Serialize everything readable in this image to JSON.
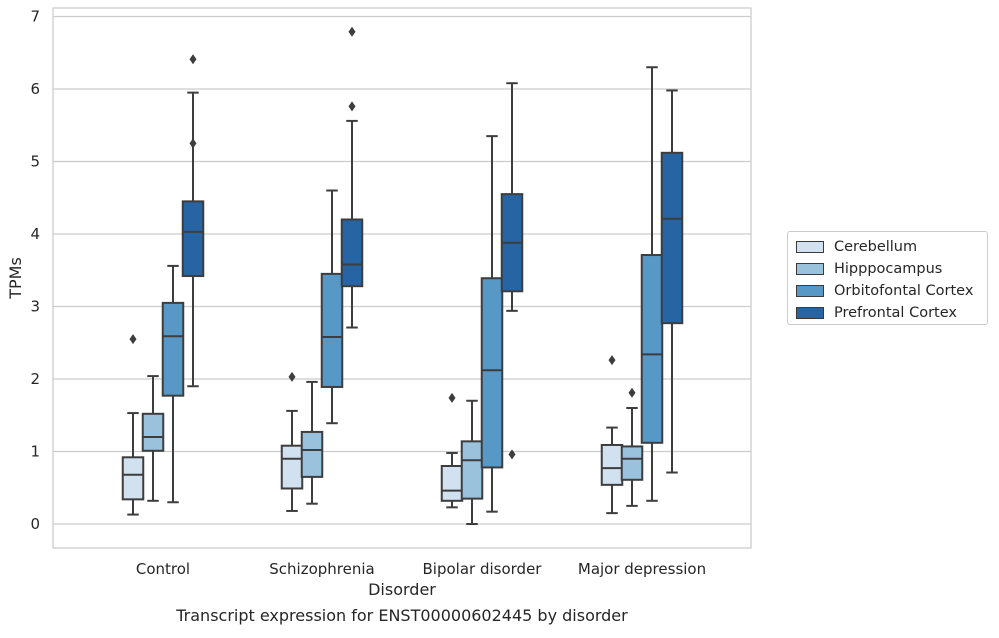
{
  "chart_data": {
    "type": "boxplot",
    "categories": [
      "Control",
      "Schizophrenia",
      "Bipolar disorder",
      "Major depression"
    ],
    "xlabel": "Disorder",
    "ylabel": "TPMs",
    "ylim": [
      -0.32,
      7.13
    ],
    "yticks": [
      0,
      1,
      2,
      3,
      4,
      5,
      6,
      7
    ],
    "grid": "horizontal",
    "legend_position": "right",
    "series": [
      {
        "name": "Cerebellum",
        "color": "#d1e1f0",
        "boxes": [
          {
            "whislo": 0.13,
            "q1": 0.34,
            "med": 0.68,
            "q3": 0.92,
            "whishi": 1.53,
            "fliers": [
              2.55
            ]
          },
          {
            "whislo": 0.18,
            "q1": 0.49,
            "med": 0.9,
            "q3": 1.08,
            "whishi": 1.56,
            "fliers": [
              2.03
            ]
          },
          {
            "whislo": 0.23,
            "q1": 0.32,
            "med": 0.46,
            "q3": 0.8,
            "whishi": 0.98,
            "fliers": [
              1.74
            ]
          },
          {
            "whislo": 0.15,
            "q1": 0.54,
            "med": 0.77,
            "q3": 1.09,
            "whishi": 1.33,
            "fliers": [
              2.26
            ]
          }
        ]
      },
      {
        "name": "Hipppocampus",
        "color": "#9bc2dc",
        "boxes": [
          {
            "whislo": 0.32,
            "q1": 1.01,
            "med": 1.2,
            "q3": 1.52,
            "whishi": 2.04,
            "fliers": []
          },
          {
            "whislo": 0.28,
            "q1": 0.65,
            "med": 1.02,
            "q3": 1.27,
            "whishi": 1.96,
            "fliers": []
          },
          {
            "whislo": 0.0,
            "q1": 0.35,
            "med": 0.88,
            "q3": 1.14,
            "whishi": 1.7,
            "fliers": []
          },
          {
            "whislo": 0.25,
            "q1": 0.61,
            "med": 0.9,
            "q3": 1.07,
            "whishi": 1.6,
            "fliers": [
              1.81
            ]
          }
        ]
      },
      {
        "name": "Orbitofontal Cortex",
        "color": "#5898c6",
        "boxes": [
          {
            "whislo": 0.3,
            "q1": 1.77,
            "med": 2.59,
            "q3": 3.05,
            "whishi": 3.56,
            "fliers": []
          },
          {
            "whislo": 1.39,
            "q1": 1.89,
            "med": 2.58,
            "q3": 3.45,
            "whishi": 4.6,
            "fliers": []
          },
          {
            "whislo": 0.17,
            "q1": 0.78,
            "med": 2.12,
            "q3": 3.39,
            "whishi": 5.35,
            "fliers": []
          },
          {
            "whislo": 0.32,
            "q1": 1.12,
            "med": 2.34,
            "q3": 3.71,
            "whishi": 6.3,
            "fliers": []
          }
        ]
      },
      {
        "name": "Prefrontal Cortex",
        "color": "#2664a4",
        "boxes": [
          {
            "whislo": 1.9,
            "q1": 3.42,
            "med": 4.03,
            "q3": 4.45,
            "whishi": 5.95,
            "fliers": [
              5.25,
              6.41
            ]
          },
          {
            "whislo": 2.71,
            "q1": 3.28,
            "med": 3.58,
            "q3": 4.2,
            "whishi": 5.56,
            "fliers": [
              5.76,
              6.79
            ]
          },
          {
            "whislo": 2.94,
            "q1": 3.21,
            "med": 3.88,
            "q3": 4.55,
            "whishi": 6.08,
            "fliers": [
              0.96
            ]
          },
          {
            "whislo": 0.71,
            "q1": 2.77,
            "med": 4.21,
            "q3": 5.12,
            "whishi": 5.98,
            "fliers": []
          }
        ]
      }
    ],
    "caption": "Transcript expression for ENST00000602445 by disorder"
  }
}
